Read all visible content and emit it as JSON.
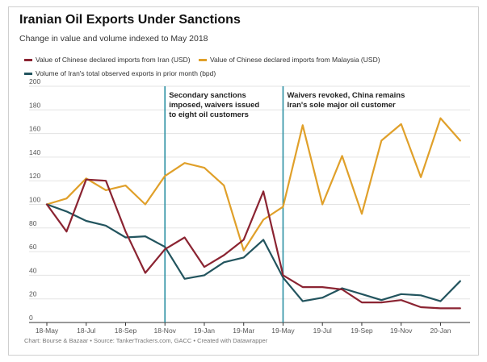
{
  "chart_data": {
    "type": "line",
    "title": "Iranian Oil Exports Under Sanctions",
    "subtitle": "Change in value and volume indexed to May 2018",
    "footer": "Chart: Bourse & Bazaar • Source: TankerTrackers.com, GACC • Created with Datawrapper",
    "x": [
      "2018-05",
      "2018-06",
      "2018-07",
      "2018-08",
      "2018-09",
      "2018-10",
      "2018-11",
      "2018-12",
      "2019-01",
      "2019-02",
      "2019-03",
      "2019-04",
      "2019-05",
      "2019-06",
      "2019-07",
      "2019-08",
      "2019-09",
      "2019-10",
      "2019-11",
      "2019-12",
      "2020-01",
      "2020-02"
    ],
    "x_tick_labels": [
      {
        "x": "2018-05",
        "label": "18-May"
      },
      {
        "x": "2018-07",
        "label": "18-Jul"
      },
      {
        "x": "2018-09",
        "label": "18-Sep"
      },
      {
        "x": "2018-11",
        "label": "18-Nov"
      },
      {
        "x": "2019-01",
        "label": "19-Jan"
      },
      {
        "x": "2019-03",
        "label": "19-Mar"
      },
      {
        "x": "2019-05",
        "label": "19-May"
      },
      {
        "x": "2019-07",
        "label": "19-Jul"
      },
      {
        "x": "2019-09",
        "label": "19-Sep"
      },
      {
        "x": "2019-11",
        "label": "19-Nov"
      },
      {
        "x": "2020-01",
        "label": "20-Jan"
      }
    ],
    "ylim": [
      0,
      200
    ],
    "yticks": [
      0,
      20,
      40,
      60,
      80,
      100,
      120,
      140,
      160,
      180,
      200
    ],
    "grid": true,
    "legend_position": "top-left",
    "series": [
      {
        "name": "Value of Chinese declared imports from Iran (USD)",
        "color": "#8b2432",
        "values": [
          100,
          77,
          121,
          120,
          77,
          42,
          62,
          72,
          47,
          57,
          70,
          111,
          40,
          30,
          30,
          28,
          17,
          17,
          19,
          13,
          12,
          12
        ]
      },
      {
        "name": "Value of Chinese declared imports from Malaysia (USD)",
        "color": "#e0a02a",
        "values": [
          100,
          105,
          122,
          112,
          116,
          100,
          124,
          135,
          131,
          116,
          61,
          87,
          98,
          167,
          100,
          141,
          92,
          154,
          168,
          123,
          173,
          154
        ]
      },
      {
        "name": "Volume of Iran's total observed exports in prior month (bpd)",
        "color": "#22545e",
        "values": [
          100,
          94,
          86,
          82,
          72,
          73,
          64,
          37,
          40,
          51,
          55,
          70,
          38,
          18,
          21,
          29,
          24,
          19,
          24,
          23,
          18,
          35
        ]
      }
    ],
    "annotations": [
      {
        "x": "2018-11",
        "lines": [
          "Secondary sanctions",
          "imposed, waivers issued",
          "to eight oil customers"
        ]
      },
      {
        "x": "2019-05",
        "lines": [
          "Waivers revoked, China remains",
          "Iran's sole major oil customer"
        ]
      }
    ],
    "annotation_line_color": "#2a8fa3"
  }
}
